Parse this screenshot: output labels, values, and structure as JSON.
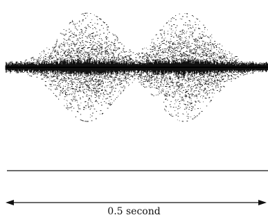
{
  "caption": {
    "duration_label": "0.5 second"
  },
  "waveform": {
    "bursts": 2,
    "peak_amplitude_fraction": 1.0,
    "baseline_amplitude_fraction": 0.07,
    "noise_color": "#1a1a1a"
  },
  "colors": {
    "ink": "#111111",
    "background": "#ffffff"
  }
}
